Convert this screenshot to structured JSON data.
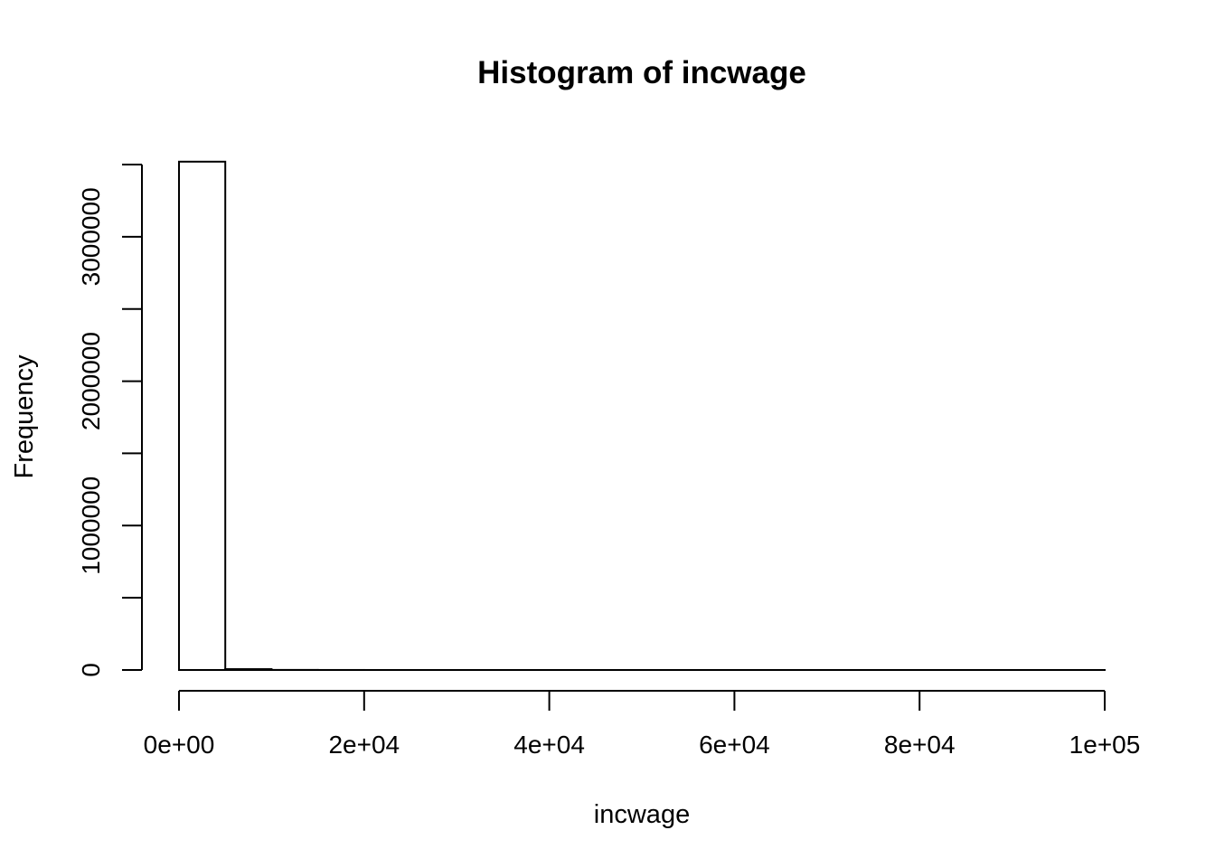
{
  "chart_data": {
    "type": "bar",
    "title": "Histogram of incwage",
    "xlabel": "incwage",
    "ylabel": "Frequency",
    "xlim": [
      0,
      100000
    ],
    "ylim": [
      0,
      3500000
    ],
    "bin_width": 5000,
    "bins": [
      {
        "x0": 0,
        "x1": 5000,
        "count": 3520000
      },
      {
        "x0": 5000,
        "x1": 10000,
        "count": 6000
      },
      {
        "x0": 10000,
        "x1": 15000,
        "count": 600
      },
      {
        "x0": 15000,
        "x1": 20000,
        "count": 200
      },
      {
        "x0": 20000,
        "x1": 25000,
        "count": 80
      },
      {
        "x0": 25000,
        "x1": 30000,
        "count": 40
      },
      {
        "x0": 30000,
        "x1": 35000,
        "count": 20
      },
      {
        "x0": 35000,
        "x1": 40000,
        "count": 10
      },
      {
        "x0": 40000,
        "x1": 45000,
        "count": 8
      },
      {
        "x0": 45000,
        "x1": 50000,
        "count": 6
      },
      {
        "x0": 50000,
        "x1": 55000,
        "count": 4
      },
      {
        "x0": 55000,
        "x1": 60000,
        "count": 3
      },
      {
        "x0": 60000,
        "x1": 65000,
        "count": 2
      },
      {
        "x0": 65000,
        "x1": 70000,
        "count": 2
      },
      {
        "x0": 70000,
        "x1": 75000,
        "count": 1
      },
      {
        "x0": 75000,
        "x1": 80000,
        "count": 1
      },
      {
        "x0": 80000,
        "x1": 85000,
        "count": 1
      },
      {
        "x0": 85000,
        "x1": 90000,
        "count": 1
      },
      {
        "x0": 90000,
        "x1": 95000,
        "count": 1
      },
      {
        "x0": 95000,
        "x1": 100000,
        "count": 1
      }
    ],
    "x_ticks": [
      {
        "value": 0,
        "label": "0e+00"
      },
      {
        "value": 20000,
        "label": "2e+04"
      },
      {
        "value": 40000,
        "label": "4e+04"
      },
      {
        "value": 60000,
        "label": "6e+04"
      },
      {
        "value": 80000,
        "label": "8e+04"
      },
      {
        "value": 100000,
        "label": "1e+05"
      }
    ],
    "y_ticks": [
      {
        "value": 0,
        "label": "0"
      },
      {
        "value": 500000,
        "label": ""
      },
      {
        "value": 1000000,
        "label": "1000000"
      },
      {
        "value": 1500000,
        "label": ""
      },
      {
        "value": 2000000,
        "label": "2000000"
      },
      {
        "value": 2500000,
        "label": ""
      },
      {
        "value": 3000000,
        "label": "3000000"
      },
      {
        "value": 3500000,
        "label": ""
      }
    ],
    "grid": false,
    "bar_fill": "#ffffff",
    "bar_stroke": "#000000"
  }
}
